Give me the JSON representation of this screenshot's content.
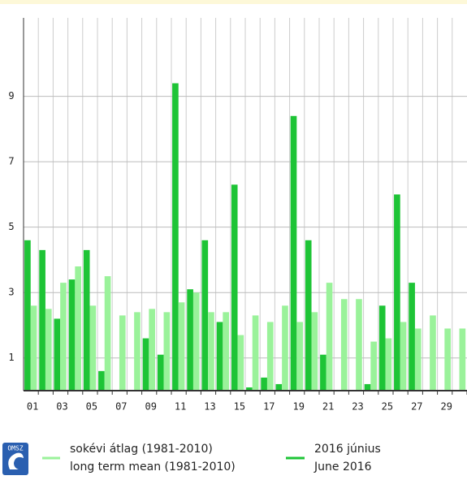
{
  "chart_data": {
    "type": "bar",
    "categories": [
      "01",
      null,
      "03",
      null,
      "05",
      null,
      "07",
      null,
      "09",
      null,
      "11",
      null,
      "13",
      null,
      "15",
      null,
      "17",
      null,
      "19",
      null,
      "21",
      null,
      "23",
      null,
      "25",
      null,
      "27",
      null,
      "29",
      null
    ],
    "series": [
      {
        "name": "sokévi átlag (1981-2010)",
        "name_en": "long term mean (1981-2010)",
        "color": "#9af29a",
        "values": [
          2.6,
          2.5,
          3.3,
          3.8,
          2.6,
          3.5,
          2.3,
          2.4,
          2.5,
          2.4,
          2.7,
          3.0,
          2.4,
          2.4,
          1.7,
          2.3,
          2.1,
          2.6,
          2.1,
          2.4,
          3.3,
          2.8,
          2.8,
          1.5,
          1.6,
          2.1,
          1.9,
          2.3,
          1.9,
          1.9
        ]
      },
      {
        "name": "2016 június",
        "name_en": "June 2016",
        "color": "#1ec436",
        "values": [
          4.6,
          4.3,
          2.2,
          3.4,
          4.3,
          0.6,
          0,
          0,
          1.6,
          1.1,
          9.4,
          3.1,
          4.6,
          2.1,
          6.3,
          0.1,
          0.4,
          0.2,
          8.4,
          4.6,
          1.1,
          0,
          0,
          0.2,
          2.6,
          6.0,
          3.3,
          0,
          0,
          0
        ]
      }
    ],
    "ylim": [
      0,
      11.4
    ],
    "yticks": [
      1,
      3,
      5,
      7,
      9
    ],
    "grid": true,
    "logo": "OMSZ"
  }
}
